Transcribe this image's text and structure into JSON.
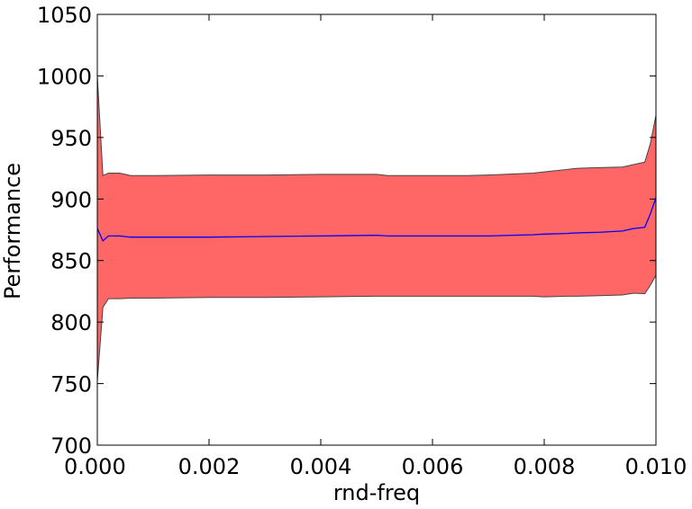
{
  "chart_data": {
    "type": "area",
    "title": "",
    "xlabel": "rnd-freq",
    "ylabel": "Performance",
    "xlim": [
      0.0,
      0.01
    ],
    "ylim": [
      700,
      1050
    ],
    "x_ticks": [
      0.0,
      0.002,
      0.004,
      0.006,
      0.008,
      0.01
    ],
    "x_tick_labels": [
      "0.000",
      "0.002",
      "0.004",
      "0.006",
      "0.008",
      "0.010"
    ],
    "y_ticks": [
      700,
      750,
      800,
      850,
      900,
      950,
      1000,
      1050
    ],
    "y_tick_labels": [
      "700",
      "750",
      "800",
      "850",
      "900",
      "950",
      "1000",
      "1050"
    ],
    "grid": false,
    "colors": {
      "band_fill": "#ff6666",
      "band_edge": "#444444",
      "mean_line": "#0000ff"
    },
    "series": [
      {
        "x": [
          0.0,
          0.0001,
          0.0002,
          0.0004,
          0.0006,
          0.001,
          0.002,
          0.003,
          0.004,
          0.005,
          0.0052,
          0.006,
          0.0066,
          0.007,
          0.0078,
          0.008,
          0.0084,
          0.0086,
          0.009,
          0.0094,
          0.0096,
          0.0098,
          0.0099,
          0.01
        ],
        "mean": [
          876,
          866,
          870,
          870,
          869,
          869,
          869,
          869.5,
          870,
          870.5,
          870,
          870,
          870,
          870,
          871,
          871.5,
          872,
          872.5,
          873,
          874,
          876,
          877,
          888,
          901
        ],
        "upper": [
          1000,
          919,
          921,
          921,
          919,
          919,
          919.5,
          919.5,
          920,
          920,
          919,
          919,
          919,
          919.5,
          921,
          922,
          924,
          925,
          925.5,
          926,
          928,
          930,
          945,
          968
        ],
        "lower": [
          752,
          812,
          819,
          819,
          819.5,
          819.5,
          820,
          820,
          820.5,
          821,
          821,
          821,
          821,
          821,
          821,
          820.5,
          821,
          821,
          821.5,
          822,
          823.5,
          823,
          830,
          838
        ]
      }
    ]
  }
}
